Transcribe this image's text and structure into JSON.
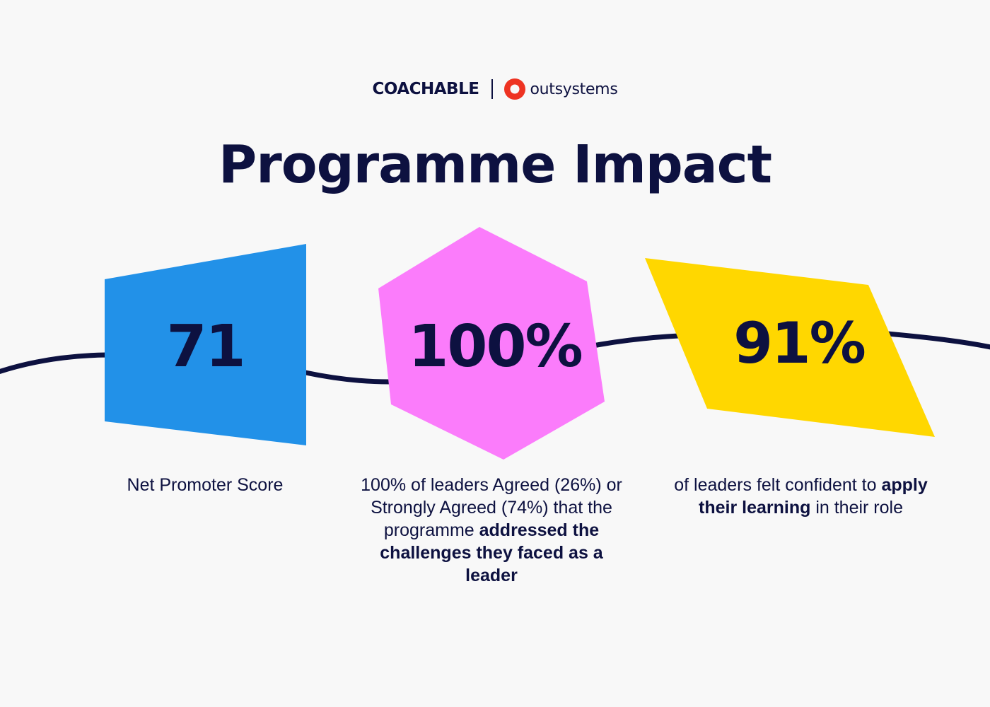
{
  "header": {
    "brand_left": "COACHABLE",
    "brand_right": "outsystems",
    "title": "Programme Impact"
  },
  "stats": [
    {
      "value": "71",
      "shape_color": "#2291e8",
      "caption": {
        "text_1": "Net Promoter Score"
      }
    },
    {
      "value": "100%",
      "shape_color": "#fb7cfb",
      "caption": {
        "text_1": "100% of leaders Agreed (26%) or Strongly Agreed (74%) that the programme ",
        "bold_1": "addressed the challenges they faced as a leader"
      }
    },
    {
      "value": "91%",
      "shape_color": "#ffd700",
      "caption": {
        "text_1": "of leaders felt confident to ",
        "bold_1": "apply their learning",
        "text_2": " in their role"
      }
    }
  ],
  "colors": {
    "background": "#f8f8f8",
    "ink": "#0d1140",
    "outsystems_red": "#ee3322"
  },
  "icons": [
    "outsystems-logo-icon"
  ]
}
